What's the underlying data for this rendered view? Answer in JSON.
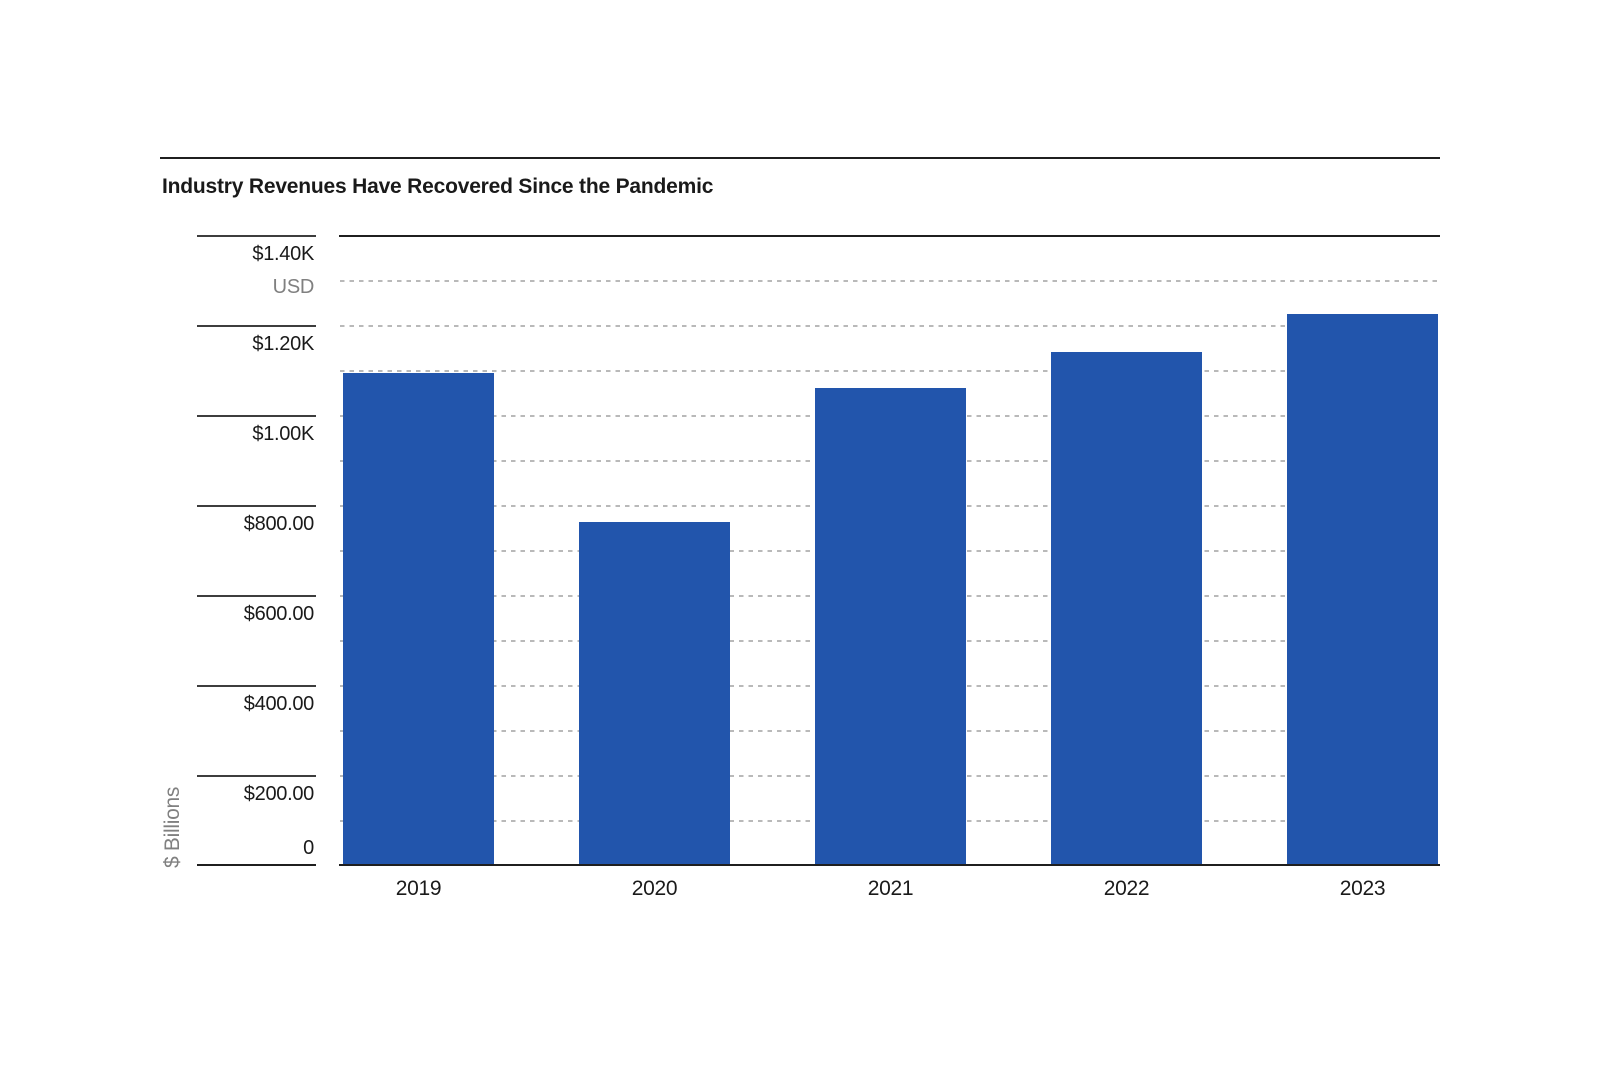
{
  "chart_data": {
    "type": "bar",
    "title": "Industry Revenues Have Recovered Since the Pandemic",
    "unit_label": "USD",
    "ylabel": "$ Billions",
    "xlabel": "",
    "categories": [
      "2019",
      "2020",
      "2021",
      "2022",
      "2023"
    ],
    "values": [
      1095,
      764,
      1063,
      1142,
      1227
    ],
    "ylim": [
      0,
      1400
    ],
    "yticks": [
      {
        "value": 1400,
        "label": "$1.40K"
      },
      {
        "value": 1200,
        "label": "$1.20K"
      },
      {
        "value": 1000,
        "label": "$1.00K"
      },
      {
        "value": 800,
        "label": "$800.00"
      },
      {
        "value": 600,
        "label": "$600.00"
      },
      {
        "value": 400,
        "label": "$400.00"
      },
      {
        "value": 200,
        "label": "$200.00"
      },
      {
        "value": 0,
        "label": "0"
      }
    ],
    "gridline_interval": 100,
    "grid_on": true,
    "legend": "none",
    "colors": {
      "bar": "#2255ac",
      "grid": "#b9b9b9",
      "axis": "#1f1f1f",
      "tick": "#3d3d3d",
      "text": "#1a1a1a",
      "muted": "#808080"
    }
  }
}
